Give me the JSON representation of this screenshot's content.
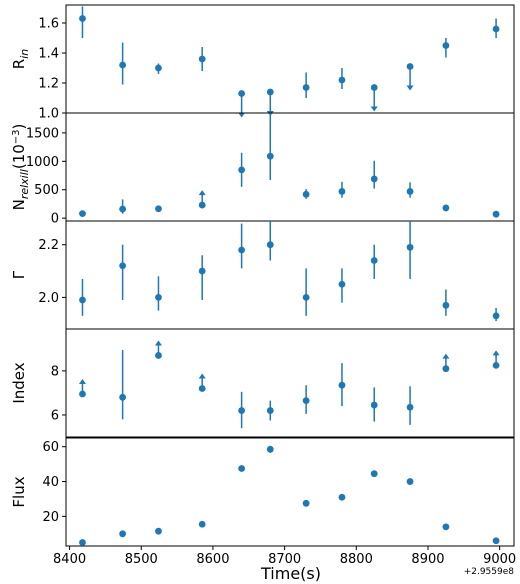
{
  "chart_data": {
    "type": "scatter",
    "color": "#1f77b4",
    "x": [
      8418,
      8474,
      8524,
      8585,
      8640,
      8680,
      8730,
      8780,
      8825,
      8875,
      8925,
      8995
    ],
    "xlabel": "Time(s)",
    "xoffset_label": "+2.9559e8",
    "xlim": [
      8395,
      9020
    ],
    "xticks": [
      "8400",
      "8500",
      "8600",
      "8700",
      "8800",
      "8900",
      "9000"
    ],
    "panels": [
      {
        "ylabel": "R",
        "ylabel_sub": "in",
        "ylim": [
          1.0,
          1.72
        ],
        "yticks": [
          "1.0",
          "1.2",
          "1.4",
          "1.6"
        ],
        "y": [
          1.63,
          1.32,
          1.3,
          1.36,
          1.13,
          1.14,
          1.17,
          1.22,
          1.17,
          1.31,
          1.45,
          1.56
        ],
        "err_low": [
          1.5,
          1.19,
          1.26,
          1.28,
          null,
          null,
          1.1,
          1.16,
          null,
          null,
          1.37,
          1.5
        ],
        "err_high": [
          1.71,
          1.47,
          1.33,
          1.44,
          null,
          null,
          1.27,
          1.3,
          null,
          null,
          1.5,
          1.63
        ],
        "limit": [
          "",
          "",
          "",
          "",
          "upper",
          "upper",
          "",
          "",
          "upper",
          "upper",
          "",
          ""
        ]
      },
      {
        "ylabel": "N",
        "ylabel_sub": "relxill",
        "ylabel_suffix": "(10",
        "ylabel_sup": "−3",
        "ylabel_end": ")",
        "ylim": [
          -50,
          1850
        ],
        "yticks": [
          "0",
          "500",
          "1000",
          "1500"
        ],
        "y": [
          80,
          160,
          165,
          230,
          850,
          1090,
          420,
          470,
          690,
          470,
          180,
          70
        ],
        "err_low": [
          null,
          80,
          null,
          null,
          550,
          670,
          340,
          360,
          520,
          360,
          null,
          null
        ],
        "err_high": [
          null,
          330,
          null,
          null,
          1150,
          1850,
          510,
          640,
          1010,
          630,
          null,
          null
        ],
        "limit": [
          "",
          "",
          "",
          "lower",
          "",
          "",
          "",
          "",
          "",
          "",
          "",
          ""
        ]
      },
      {
        "ylabel": "Γ",
        "ylim": [
          1.88,
          2.29
        ],
        "yticks": [
          "2.0",
          "2.2"
        ],
        "y": [
          1.99,
          2.12,
          2.0,
          2.1,
          2.18,
          2.2,
          2.0,
          2.05,
          2.14,
          2.19,
          1.97,
          1.93
        ],
        "err_low": [
          1.93,
          1.99,
          1.95,
          1.99,
          2.11,
          2.14,
          1.93,
          1.98,
          2.07,
          2.07,
          1.93,
          1.91
        ],
        "err_high": [
          2.07,
          2.2,
          2.08,
          2.16,
          2.28,
          2.29,
          2.11,
          2.11,
          2.2,
          2.29,
          2.03,
          1.96
        ],
        "limit": [
          "",
          "",
          "",
          "",
          "",
          "",
          "",
          "",
          "",
          "",
          "",
          ""
        ]
      },
      {
        "ylabel": "Index",
        "ylim": [
          5.0,
          9.9
        ],
        "yticks": [
          "6",
          "8"
        ],
        "y": [
          6.95,
          6.8,
          8.7,
          7.2,
          6.2,
          6.2,
          6.65,
          7.35,
          6.45,
          6.35,
          8.1,
          8.25
        ],
        "err_low": [
          null,
          5.8,
          null,
          null,
          5.4,
          5.75,
          6.05,
          6.4,
          5.7,
          5.55,
          null,
          null
        ],
        "err_high": [
          null,
          8.95,
          null,
          null,
          7.05,
          6.65,
          7.35,
          8.35,
          7.25,
          7.3,
          null,
          null
        ],
        "limit": [
          "lower",
          "",
          "lower",
          "lower",
          "",
          "",
          "",
          "",
          "",
          "",
          "lower",
          "lower"
        ]
      },
      {
        "ylabel": "Flux",
        "ylim": [
          3,
          65
        ],
        "yticks": [
          "20",
          "40",
          "60"
        ],
        "y": [
          5,
          10,
          11.5,
          15.5,
          47.5,
          58.5,
          27.5,
          31,
          44.5,
          40,
          14,
          6
        ],
        "err_low": [
          null,
          null,
          null,
          null,
          46,
          56.5,
          null,
          null,
          43,
          39,
          null,
          null
        ],
        "err_high": [
          null,
          null,
          null,
          null,
          49,
          60.5,
          null,
          null,
          46,
          41,
          null,
          null
        ],
        "limit": [
          "",
          "",
          "",
          "",
          "",
          "",
          "",
          "",
          "",
          "",
          "",
          ""
        ]
      }
    ]
  }
}
